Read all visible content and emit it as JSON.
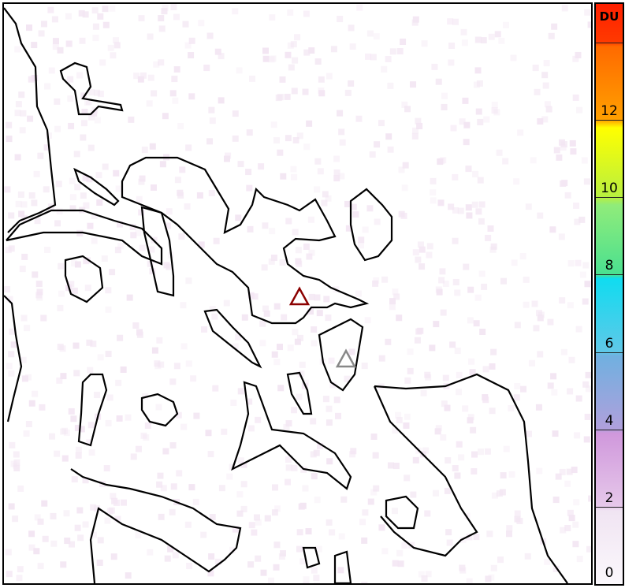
{
  "map": {
    "markers": [
      {
        "name": "volcano-primary",
        "color": "#8b0000"
      },
      {
        "name": "volcano-secondary",
        "color": "#888888"
      }
    ],
    "background_tint": "#f3e6f3"
  },
  "colorbar": {
    "unit": "DU",
    "ticks": [
      "0",
      "2",
      "4",
      "6",
      "8",
      "10",
      "12"
    ],
    "range": [
      0,
      15
    ],
    "stops": [
      "#f8f4f9",
      "#ead0ea",
      "#c9a0dc",
      "#6fa8e0",
      "#1ed8ea",
      "#9be86a",
      "#ffff00",
      "#ff8c00",
      "#ff2a00"
    ]
  }
}
